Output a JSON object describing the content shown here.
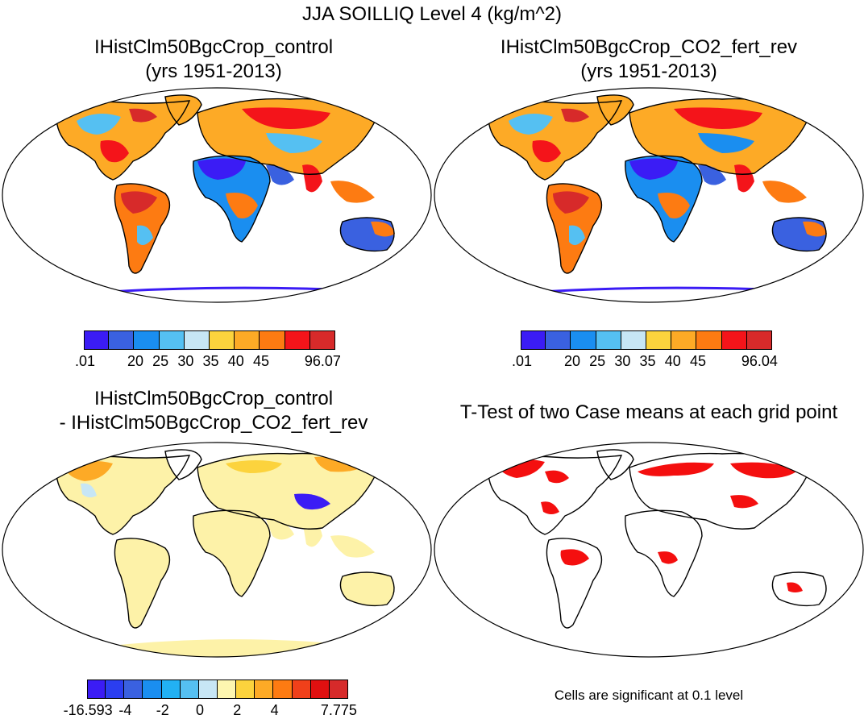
{
  "figure": {
    "title": "JJA SOILLIQ Level 4 (kg/m^2)"
  },
  "panels": [
    {
      "id": "control",
      "title_lines": [
        "IHistClm50BgcCrop_control",
        "(yrs 1951-2013)"
      ],
      "colorbar": {
        "colors": [
          "#3b1cf5",
          "#3a61e0",
          "#1a8ef0",
          "#55c0f2",
          "#c7e6f5",
          "#fcd33d",
          "#fdaa26",
          "#fd7b12",
          "#f4141a",
          "#d72a2a"
        ],
        "labels": [
          ".01",
          "",
          "20",
          "25",
          "30",
          "35",
          "40",
          "45",
          "",
          "96.07"
        ]
      }
    },
    {
      "id": "co2",
      "title_lines": [
        "IHistClm50BgcCrop_CO2_fert_rev",
        "(yrs 1951-2013)"
      ],
      "colorbar": {
        "colors": [
          "#3b1cf5",
          "#3a61e0",
          "#1a8ef0",
          "#55c0f2",
          "#c7e6f5",
          "#fcd33d",
          "#fdaa26",
          "#fd7b12",
          "#f4141a",
          "#d72a2a"
        ],
        "labels": [
          ".01",
          "",
          "20",
          "25",
          "30",
          "35",
          "40",
          "45",
          "",
          "96.04"
        ]
      }
    },
    {
      "id": "diff",
      "title_lines": [
        "IHistClm50BgcCrop_control",
        "- IHistClm50BgcCrop_CO2_fert_rev"
      ],
      "colorbar": {
        "colors": [
          "#3b1cf5",
          "#2b3ef0",
          "#3a61e0",
          "#1a8ef0",
          "#22b1f3",
          "#55c0f2",
          "#c7e6f5",
          "#fdf6b0",
          "#fcd33d",
          "#fdaa26",
          "#fd7b12",
          "#f0401a",
          "#e01010",
          "#d72a2a"
        ],
        "labels": [
          "-16.593",
          "",
          "-4",
          "",
          "-2",
          "",
          "0",
          "",
          "2",
          "",
          "4",
          "",
          "",
          "7.775"
        ]
      }
    },
    {
      "id": "ttest",
      "title_lines": [
        "T-Test of two Case means at each grid point"
      ],
      "note": "Cells are significant at 0.1 level"
    }
  ],
  "map_colors": {
    "ocean": "#ffffff",
    "coast": "#000000",
    "significance": "#f40f0f",
    "diff_land": "#fdf2a8"
  }
}
